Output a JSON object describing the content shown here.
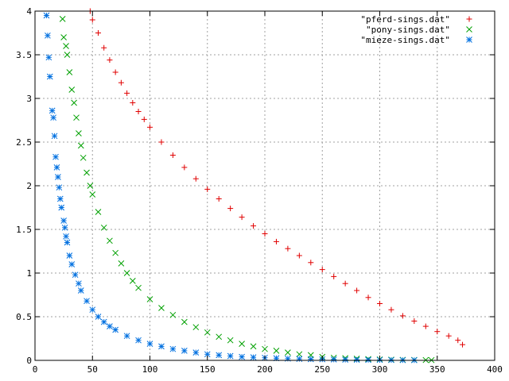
{
  "chart_data": {
    "type": "scatter",
    "title": "",
    "xlabel": "",
    "ylabel": "",
    "xlim": [
      0,
      400
    ],
    "ylim": [
      0,
      4
    ],
    "x_ticks": [
      0,
      50,
      100,
      150,
      200,
      250,
      300,
      350,
      400
    ],
    "y_ticks": [
      0,
      0.5,
      1,
      1.5,
      2,
      2.5,
      3,
      3.5,
      4
    ],
    "x_tick_labels": [
      "0",
      "50",
      "100",
      "150",
      "200",
      "250",
      "300",
      "350",
      "400"
    ],
    "y_tick_labels": [
      "0",
      "0.5",
      "1",
      "1.5",
      "2",
      "2.5",
      "3",
      "3.5",
      "4"
    ],
    "grid": true,
    "legend_position": "top-right",
    "series": [
      {
        "name": "\"pferd-sings.dat\"",
        "color": "#e00000",
        "marker": "plus",
        "points": [
          [
            48,
            4.0
          ],
          [
            50,
            3.9
          ],
          [
            55,
            3.75
          ],
          [
            60,
            3.58
          ],
          [
            65,
            3.44
          ],
          [
            70,
            3.3
          ],
          [
            75,
            3.18
          ],
          [
            80,
            3.06
          ],
          [
            85,
            2.95
          ],
          [
            90,
            2.85
          ],
          [
            95,
            2.76
          ],
          [
            100,
            2.67
          ],
          [
            110,
            2.5
          ],
          [
            120,
            2.35
          ],
          [
            130,
            2.21
          ],
          [
            140,
            2.08
          ],
          [
            150,
            1.96
          ],
          [
            160,
            1.85
          ],
          [
            170,
            1.74
          ],
          [
            180,
            1.64
          ],
          [
            190,
            1.54
          ],
          [
            200,
            1.45
          ],
          [
            210,
            1.36
          ],
          [
            220,
            1.28
          ],
          [
            230,
            1.2
          ],
          [
            240,
            1.12
          ],
          [
            250,
            1.04
          ],
          [
            260,
            0.96
          ],
          [
            270,
            0.88
          ],
          [
            280,
            0.8
          ],
          [
            290,
            0.72
          ],
          [
            300,
            0.65
          ],
          [
            310,
            0.58
          ],
          [
            320,
            0.51
          ],
          [
            330,
            0.45
          ],
          [
            340,
            0.39
          ],
          [
            350,
            0.33
          ],
          [
            360,
            0.28
          ],
          [
            368,
            0.23
          ],
          [
            372,
            0.18
          ]
        ]
      },
      {
        "name": "\"pony-sings.dat\"",
        "color": "#00a000",
        "marker": "cross",
        "points": [
          [
            24,
            3.91
          ],
          [
            25,
            3.7
          ],
          [
            27,
            3.6
          ],
          [
            28,
            3.5
          ],
          [
            30,
            3.3
          ],
          [
            32,
            3.1
          ],
          [
            34,
            2.95
          ],
          [
            36,
            2.78
          ],
          [
            38,
            2.6
          ],
          [
            40,
            2.46
          ],
          [
            42,
            2.32
          ],
          [
            45,
            2.15
          ],
          [
            48,
            2.0
          ],
          [
            50,
            1.9
          ],
          [
            55,
            1.7
          ],
          [
            60,
            1.52
          ],
          [
            65,
            1.37
          ],
          [
            70,
            1.23
          ],
          [
            75,
            1.11
          ],
          [
            80,
            1.0
          ],
          [
            85,
            0.91
          ],
          [
            90,
            0.83
          ],
          [
            100,
            0.7
          ],
          [
            110,
            0.6
          ],
          [
            120,
            0.52
          ],
          [
            130,
            0.44
          ],
          [
            140,
            0.38
          ],
          [
            150,
            0.32
          ],
          [
            160,
            0.27
          ],
          [
            170,
            0.23
          ],
          [
            180,
            0.19
          ],
          [
            190,
            0.16
          ],
          [
            200,
            0.13
          ],
          [
            210,
            0.11
          ],
          [
            220,
            0.09
          ],
          [
            230,
            0.07
          ],
          [
            240,
            0.06
          ],
          [
            250,
            0.04
          ],
          [
            260,
            0.03
          ],
          [
            270,
            0.025
          ],
          [
            280,
            0.02
          ],
          [
            290,
            0.015
          ],
          [
            300,
            0.01
          ],
          [
            310,
            0.008
          ],
          [
            320,
            0.006
          ],
          [
            330,
            0.005
          ],
          [
            340,
            0.004
          ],
          [
            345,
            0.003
          ]
        ]
      },
      {
        "name": "\"mieze-sings.dat\"",
        "color": "#0070e0",
        "marker": "star",
        "points": [
          [
            10,
            3.95
          ],
          [
            11,
            3.72
          ],
          [
            12,
            3.47
          ],
          [
            13,
            3.25
          ],
          [
            15,
            2.86
          ],
          [
            16,
            2.78
          ],
          [
            17,
            2.57
          ],
          [
            18,
            2.33
          ],
          [
            19,
            2.21
          ],
          [
            20,
            2.1
          ],
          [
            21,
            1.98
          ],
          [
            22,
            1.85
          ],
          [
            23,
            1.75
          ],
          [
            25,
            1.6
          ],
          [
            26,
            1.52
          ],
          [
            27,
            1.42
          ],
          [
            28,
            1.35
          ],
          [
            30,
            1.2
          ],
          [
            32,
            1.1
          ],
          [
            35,
            0.98
          ],
          [
            38,
            0.88
          ],
          [
            40,
            0.8
          ],
          [
            45,
            0.68
          ],
          [
            50,
            0.58
          ],
          [
            55,
            0.5
          ],
          [
            60,
            0.44
          ],
          [
            65,
            0.39
          ],
          [
            70,
            0.35
          ],
          [
            80,
            0.28
          ],
          [
            90,
            0.23
          ],
          [
            100,
            0.19
          ],
          [
            110,
            0.16
          ],
          [
            120,
            0.13
          ],
          [
            130,
            0.11
          ],
          [
            140,
            0.09
          ],
          [
            150,
            0.07
          ],
          [
            160,
            0.06
          ],
          [
            170,
            0.05
          ],
          [
            180,
            0.04
          ],
          [
            190,
            0.035
          ],
          [
            200,
            0.03
          ],
          [
            210,
            0.025
          ],
          [
            220,
            0.02
          ],
          [
            230,
            0.017
          ],
          [
            240,
            0.014
          ],
          [
            250,
            0.012
          ],
          [
            260,
            0.01
          ],
          [
            270,
            0.008
          ],
          [
            280,
            0.007
          ],
          [
            290,
            0.006
          ],
          [
            300,
            0.005
          ],
          [
            310,
            0.004
          ],
          [
            320,
            0.003
          ],
          [
            330,
            0.002
          ]
        ]
      }
    ]
  }
}
